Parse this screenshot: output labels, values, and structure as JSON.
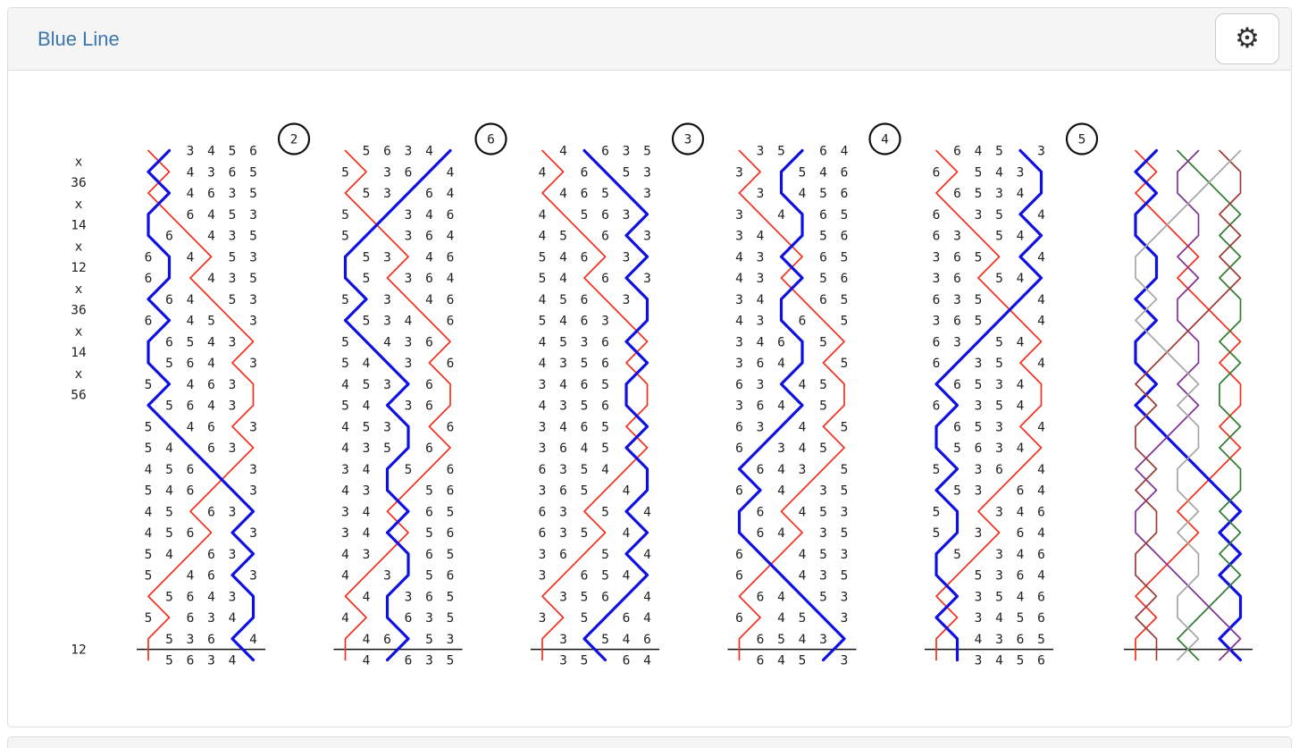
{
  "panel": {
    "title": "Blue Line"
  },
  "settings_button": {
    "icon_name": "gear-icon",
    "icon_glyph": "⚙"
  },
  "notation": {
    "changes": [
      "x",
      "36",
      "x",
      "14",
      "x",
      "12",
      "x",
      "36",
      "x",
      "14",
      "x",
      "56"
    ],
    "lead_end_change": "12"
  },
  "bells": {
    "treble": "1",
    "work_bell": "2"
  },
  "colors": {
    "title": "#3b76ae",
    "digit": "#222222",
    "rule_line": "#111111",
    "circle_stroke": "#111111",
    "treble_line": "#f3301f",
    "work_line": "#0e11df",
    "grid_bells": {
      "1": "#f3301f",
      "2": "#0e11df",
      "3": "#2f7d2f",
      "4": "#7e3094",
      "5": "#9c3a34",
      "6": "#a6a6a6"
    }
  },
  "leads": [
    {
      "place_bell": "2",
      "rows": [
        "123456",
        "214365",
        "124635",
        "216453",
        "261435",
        "624153",
        "621435",
        "264153",
        "624513",
        "265431",
        "256413",
        "524631",
        "256431",
        "524613",
        "542631",
        "456213",
        "546123",
        "451632",
        "456123",
        "541632",
        "514623",
        "156432",
        "516342",
        "153624",
        "156342"
      ]
    },
    {
      "place_bell": "6",
      "rows": [
        "156342",
        "513624",
        "153264",
        "512346",
        "521364",
        "253146",
        "251364",
        "523146",
        "253416",
        "524361",
        "542316",
        "453261",
        "542361",
        "453216",
        "435261",
        "342516",
        "432156",
        "341265",
        "342156",
        "431265",
        "413256",
        "142365",
        "412635",
        "146253",
        "142635"
      ]
    },
    {
      "place_bell": "3",
      "rows": [
        "142635",
        "416253",
        "146523",
        "415632",
        "451623",
        "546132",
        "541623",
        "456132",
        "546312",
        "453621",
        "435612",
        "346521",
        "435621",
        "346512",
        "364521",
        "635412",
        "365142",
        "631524",
        "635142",
        "361524",
        "316542",
        "135624",
        "315264",
        "132546",
        "135264"
      ]
    },
    {
      "place_bell": "4",
      "rows": [
        "135264",
        "312546",
        "132456",
        "314265",
        "341256",
        "432165",
        "431256",
        "342165",
        "432615",
        "346251",
        "364215",
        "632451",
        "364251",
        "632415",
        "623451",
        "264315",
        "624135",
        "261453",
        "264135",
        "621453",
        "612435",
        "164253",
        "614523",
        "165432",
        "164523"
      ]
    },
    {
      "place_bell": "5",
      "rows": [
        "164523",
        "615432",
        "165342",
        "613524",
        "631542",
        "365124",
        "361542",
        "635124",
        "365214",
        "632541",
        "623514",
        "265341",
        "623541",
        "265314",
        "256341",
        "523614",
        "253164",
        "521346",
        "523164",
        "251346",
        "215364",
        "123546",
        "213456",
        "124365",
        "123456"
      ]
    }
  ],
  "grid": {
    "rows": [
      "123456",
      "214365",
      "124635",
      "216453",
      "261435",
      "624153",
      "621435",
      "264153",
      "624513",
      "265431",
      "256413",
      "524631",
      "256431",
      "524613",
      "542631",
      "456213",
      "546123",
      "451632",
      "456123",
      "541632",
      "514623",
      "156432",
      "516342",
      "153624",
      "156342"
    ]
  }
}
